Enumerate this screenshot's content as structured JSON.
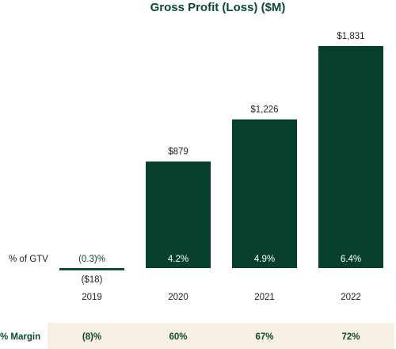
{
  "colors": {
    "bar": "#07402a",
    "accent_text": "#0b4a30",
    "margin_band": "#f7efe1",
    "on_bar_text": "#ffffff",
    "body_text": "#1f1f1f"
  },
  "chart_data": {
    "type": "bar",
    "title": "Gross Profit (Loss) ($M)",
    "xlabel": "",
    "ylabel": "",
    "grid": false,
    "categories": [
      "2019",
      "2020",
      "2021",
      "2022"
    ],
    "values": [
      -18,
      879,
      1226,
      1831
    ],
    "value_labels": [
      "($18)",
      "$879",
      "$1,226",
      "$1,831"
    ],
    "ylim": [
      -18,
      1900
    ],
    "gtv": {
      "label": "% of GTV",
      "values": [
        "(0.3)%",
        "4.2%",
        "4.9%",
        "6.4%"
      ]
    },
    "margin": {
      "label": "% Margin",
      "values": [
        "(8)%",
        "60%",
        "67%",
        "72%"
      ]
    }
  }
}
